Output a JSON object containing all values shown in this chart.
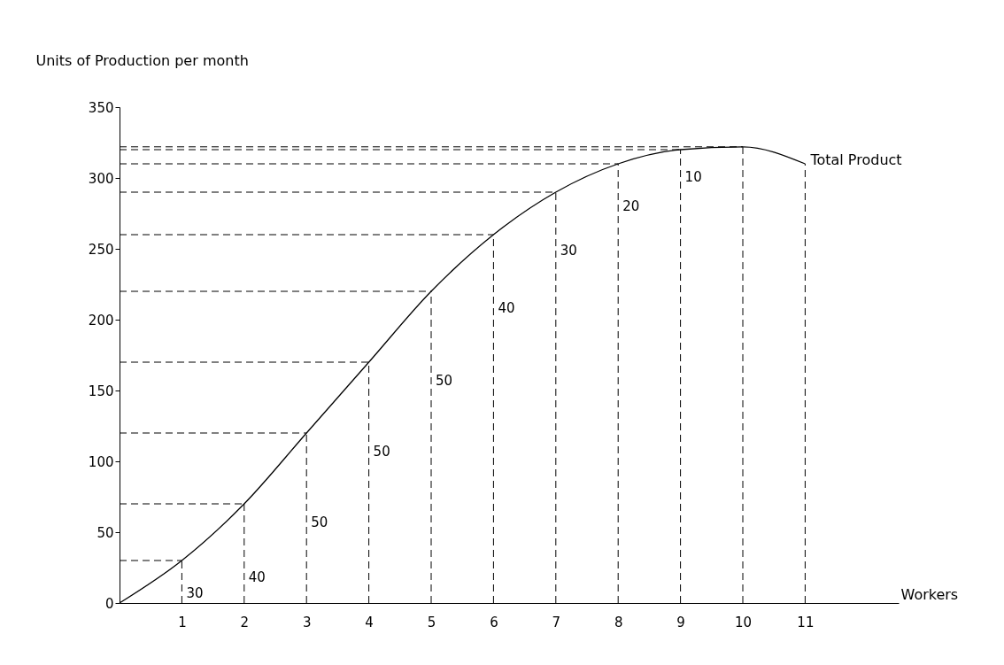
{
  "chart_data": {
    "type": "line",
    "x": [
      0,
      1,
      2,
      3,
      4,
      5,
      6,
      7,
      8,
      9,
      10,
      11
    ],
    "series": [
      {
        "name": "Total Product",
        "color": "#000000",
        "values": [
          0,
          30,
          70,
          120,
          170,
          220,
          260,
          290,
          310,
          320,
          322,
          310
        ]
      }
    ],
    "xlabel": "Workers",
    "ylabel": "Units of Production per month",
    "xlim": [
      0,
      12.5
    ],
    "xticks": [
      1,
      2,
      3,
      4,
      5,
      6,
      7,
      8,
      9,
      10,
      11
    ],
    "ylim": [
      0,
      350
    ],
    "yticks": [
      0,
      50,
      100,
      150,
      200,
      250,
      300,
      350
    ],
    "annotations": [
      "30",
      "40",
      "50",
      "50",
      "50",
      "40",
      "30",
      "20",
      "10"
    ],
    "ref_lines": [
      {
        "axis": "x",
        "value": 1,
        "color": "#000000",
        "line_style": "dashed"
      },
      {
        "axis": "x",
        "value": 2,
        "color": "#000000",
        "line_style": "dashed"
      },
      {
        "axis": "x",
        "value": 3,
        "color": "#000000",
        "line_style": "dashed"
      },
      {
        "axis": "x",
        "value": 4,
        "color": "#000000",
        "line_style": "dashed"
      },
      {
        "axis": "x",
        "value": 5,
        "color": "#000000",
        "line_style": "dashed"
      },
      {
        "axis": "x",
        "value": 6,
        "color": "#000000",
        "line_style": "dashed"
      },
      {
        "axis": "x",
        "value": 7,
        "color": "#000000",
        "line_style": "dashed"
      },
      {
        "axis": "x",
        "value": 8,
        "color": "#000000",
        "line_style": "dashed"
      },
      {
        "axis": "x",
        "value": 9,
        "color": "#000000",
        "line_style": "dashed"
      },
      {
        "axis": "x",
        "value": 10,
        "color": "#000000",
        "line_style": "dashed"
      },
      {
        "axis": "x",
        "value": 11,
        "color": "#000000",
        "line_style": "dashed"
      },
      {
        "axis": "y",
        "value": 30,
        "color": "#000000",
        "line_style": "dashed"
      },
      {
        "axis": "y",
        "value": 70,
        "color": "#000000",
        "line_style": "dashed"
      },
      {
        "axis": "y",
        "value": 120,
        "color": "#000000",
        "line_style": "dashed"
      },
      {
        "axis": "y",
        "value": 170,
        "color": "#000000",
        "line_style": "dashed"
      },
      {
        "axis": "y",
        "value": 220,
        "color": "#000000",
        "line_style": "dashed"
      },
      {
        "axis": "y",
        "value": 260,
        "color": "#000000",
        "line_style": "dashed"
      },
      {
        "axis": "y",
        "value": 290,
        "color": "#000000",
        "line_style": "dashed"
      },
      {
        "axis": "y",
        "value": 310,
        "color": "#000000",
        "line_style": "dashed"
      },
      {
        "axis": "y",
        "value": 320,
        "color": "#000000",
        "line_style": "dashed"
      },
      {
        "axis": "y",
        "value": 322,
        "color": "#000000",
        "line_style": "dashed"
      }
    ],
    "grid": false,
    "legend": false,
    "marker": "none",
    "line_style": "solid"
  }
}
